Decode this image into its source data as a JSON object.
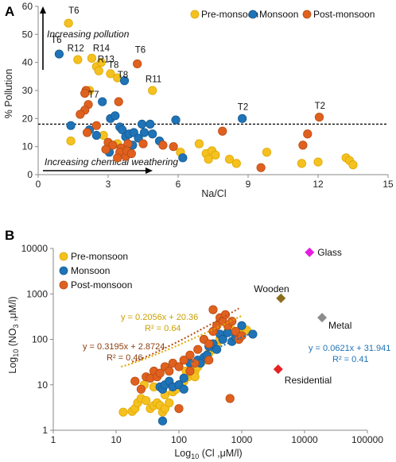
{
  "panels": [
    {
      "letter": "A"
    },
    {
      "letter": "B"
    }
  ],
  "colors": {
    "pre": "#F5C120",
    "mon": "#1F73B7",
    "post": "#E0611F",
    "pre_edge": "#E0A800",
    "mon_edge": "#155B93",
    "post_edge": "#B84B12",
    "glass": "#E51CE0",
    "wooden": "#8C6D1C",
    "metal": "#8C8C8C",
    "residential": "#E52222"
  },
  "chart_data": [
    {
      "type": "scatter",
      "panel": "A",
      "xlabel": "Na/Cl",
      "ylabel": "% Pollution",
      "xlim": [
        0,
        15
      ],
      "ylim": [
        0,
        60
      ],
      "xticks": [
        0,
        3,
        6,
        9,
        12,
        15
      ],
      "yticks": [
        0,
        10,
        20,
        30,
        40,
        50,
        60
      ],
      "legend_position": "top",
      "threshold_y": 18,
      "annotations": [
        "Increasing pollution",
        "Increasing chemical weathering"
      ],
      "series": [
        {
          "name": "Pre-monsoon",
          "color_key": "pre",
          "points": [
            [
              1.3,
              54
            ],
            [
              1.7,
              41
            ],
            [
              2.3,
              41.5
            ],
            [
              2.5,
              38.5
            ],
            [
              2.6,
              37
            ],
            [
              2.7,
              40
            ],
            [
              3.1,
              36
            ],
            [
              3.4,
              34.5
            ],
            [
              4.9,
              30
            ],
            [
              1.4,
              12
            ],
            [
              6.1,
              8
            ],
            [
              6.9,
              11
            ],
            [
              7.2,
              7.5
            ],
            [
              7.3,
              5.5
            ],
            [
              7.45,
              8.5
            ],
            [
              7.6,
              7
            ],
            [
              8.2,
              5.5
            ],
            [
              8.5,
              4
            ],
            [
              9.8,
              8
            ],
            [
              11.3,
              4
            ],
            [
              12.0,
              4.5
            ],
            [
              13.2,
              6
            ],
            [
              13.35,
              5
            ],
            [
              13.5,
              3.5
            ],
            [
              2.8,
              14
            ],
            [
              3.4,
              11
            ],
            [
              2.2,
              30
            ]
          ]
        },
        {
          "name": "Monsoon",
          "color_key": "mon",
          "points": [
            [
              0.9,
              43
            ],
            [
              3.7,
              33.5
            ],
            [
              2.75,
              26
            ],
            [
              1.4,
              17.5
            ],
            [
              2.2,
              16
            ],
            [
              2.5,
              14
            ],
            [
              3.1,
              20
            ],
            [
              3.3,
              21
            ],
            [
              3.5,
              17
            ],
            [
              3.6,
              16
            ],
            [
              3.75,
              13.5
            ],
            [
              3.9,
              14.5
            ],
            [
              4.1,
              15
            ],
            [
              4.3,
              13
            ],
            [
              4.45,
              18
            ],
            [
              4.55,
              15
            ],
            [
              4.8,
              18
            ],
            [
              4.9,
              14.5
            ],
            [
              5.2,
              12
            ],
            [
              5.9,
              19.5
            ],
            [
              6.2,
              6
            ],
            [
              8.75,
              20
            ],
            [
              4.05,
              10.5
            ],
            [
              3.05,
              8
            ]
          ]
        },
        {
          "name": "Post-monsoon",
          "color_key": "post",
          "points": [
            [
              4.25,
              39.5
            ],
            [
              2.05,
              30
            ],
            [
              2.0,
              29
            ],
            [
              2.15,
              25
            ],
            [
              2.0,
              23
            ],
            [
              1.8,
              21.5
            ],
            [
              2.5,
              17.5
            ],
            [
              2.1,
              15
            ],
            [
              3.0,
              11.5
            ],
            [
              3.2,
              10.5
            ],
            [
              3.55,
              9.5
            ],
            [
              3.85,
              11
            ],
            [
              3.45,
              26
            ],
            [
              3.5,
              8
            ],
            [
              3.75,
              6.5
            ],
            [
              3.8,
              8.5
            ],
            [
              4.0,
              7.5
            ],
            [
              3.4,
              6
            ],
            [
              4.5,
              11
            ],
            [
              5.35,
              10.5
            ],
            [
              5.8,
              10
            ],
            [
              7.9,
              15.5
            ],
            [
              9.55,
              2.5
            ],
            [
              11.35,
              10.5
            ],
            [
              12.05,
              20.5
            ],
            [
              11.55,
              14.5
            ],
            [
              2.9,
              9
            ]
          ]
        }
      ],
      "labels": [
        {
          "text": "T6",
          "x": 1.3,
          "y": 57.5
        },
        {
          "text": "T6",
          "x": 0.55,
          "y": 47
        },
        {
          "text": "R12",
          "x": 1.25,
          "y": 44
        },
        {
          "text": "R14",
          "x": 2.35,
          "y": 44
        },
        {
          "text": "R13",
          "x": 2.55,
          "y": 40
        },
        {
          "text": "T8",
          "x": 3.0,
          "y": 38
        },
        {
          "text": "T8",
          "x": 3.4,
          "y": 34.5
        },
        {
          "text": "T6",
          "x": 4.15,
          "y": 43.5
        },
        {
          "text": "R11",
          "x": 4.6,
          "y": 33
        },
        {
          "text": "T7",
          "x": 2.15,
          "y": 27.5
        },
        {
          "text": "T2",
          "x": 8.55,
          "y": 23
        },
        {
          "text": "T2",
          "x": 11.85,
          "y": 23.5
        }
      ]
    },
    {
      "type": "scatter",
      "panel": "B",
      "scale": "log-log",
      "xlabel": "Log10 (Cl ,μM/l)",
      "ylabel": "Log10 (NO3 ,μM/l)",
      "xlim": [
        1,
        100000
      ],
      "ylim": [
        1,
        10000
      ],
      "xticks": [
        1,
        10,
        100,
        1000,
        10000,
        100000
      ],
      "yticks": [
        1,
        10,
        100,
        1000,
        10000
      ],
      "legend_position": "top-left",
      "series": [
        {
          "name": "Pre-monsoon",
          "color_key": "pre",
          "points": [
            [
              13,
              2.5
            ],
            [
              18,
              2.6
            ],
            [
              20,
              3
            ],
            [
              22,
              4
            ],
            [
              25,
              5
            ],
            [
              30,
              4.5
            ],
            [
              35,
              3
            ],
            [
              40,
              3.5
            ],
            [
              45,
              4
            ],
            [
              50,
              3.5
            ],
            [
              55,
              2.5
            ],
            [
              60,
              3
            ],
            [
              70,
              4
            ],
            [
              28,
              10
            ],
            [
              40,
              9
            ],
            [
              60,
              6
            ],
            [
              80,
              7
            ],
            [
              90,
              8
            ],
            [
              100,
              10
            ],
            [
              120,
              12
            ],
            [
              140,
              15
            ],
            [
              160,
              18
            ],
            [
              180,
              20
            ],
            [
              200,
              25
            ],
            [
              220,
              30
            ],
            [
              250,
              40
            ],
            [
              300,
              50
            ],
            [
              350,
              60
            ],
            [
              400,
              80
            ],
            [
              450,
              100
            ],
            [
              500,
              120
            ],
            [
              600,
              150
            ],
            [
              700,
              160
            ],
            [
              800,
              130
            ],
            [
              1000,
              180
            ],
            [
              1200,
              160
            ],
            [
              270,
              35
            ],
            [
              180,
              15
            ],
            [
              130,
              20
            ]
          ]
        },
        {
          "name": "Monsoon",
          "color_key": "mon",
          "points": [
            [
              50,
              9
            ],
            [
              55,
              8
            ],
            [
              60,
              10
            ],
            [
              70,
              12
            ],
            [
              80,
              9
            ],
            [
              100,
              10
            ],
            [
              120,
              14
            ],
            [
              150,
              30
            ],
            [
              200,
              35
            ],
            [
              250,
              40
            ],
            [
              300,
              70
            ],
            [
              350,
              80
            ],
            [
              400,
              60
            ],
            [
              450,
              130
            ],
            [
              500,
              100
            ],
            [
              600,
              140
            ],
            [
              700,
              90
            ],
            [
              800,
              110
            ],
            [
              1000,
              200
            ],
            [
              1500,
              130
            ],
            [
              55,
              1.6
            ],
            [
              120,
              8
            ],
            [
              280,
              45
            ],
            [
              220,
              30
            ]
          ]
        },
        {
          "name": "Post-monsoon",
          "color_key": "post",
          "points": [
            [
              20,
              12
            ],
            [
              25,
              8
            ],
            [
              30,
              15
            ],
            [
              35,
              14
            ],
            [
              40,
              20
            ],
            [
              45,
              15
            ],
            [
              50,
              18
            ],
            [
              60,
              25
            ],
            [
              70,
              20
            ],
            [
              80,
              30
            ],
            [
              100,
              25
            ],
            [
              120,
              35
            ],
            [
              150,
              45
            ],
            [
              180,
              30
            ],
            [
              200,
              60
            ],
            [
              250,
              100
            ],
            [
              300,
              80
            ],
            [
              350,
              150
            ],
            [
              400,
              200
            ],
            [
              450,
              300
            ],
            [
              500,
              250
            ],
            [
              550,
              350
            ],
            [
              600,
              200
            ],
            [
              700,
              250
            ],
            [
              800,
              150
            ],
            [
              900,
              100
            ],
            [
              1000,
              120
            ],
            [
              350,
              450
            ],
            [
              650,
              5
            ],
            [
              100,
              3
            ],
            [
              150,
              20
            ],
            [
              300,
              35
            ]
          ]
        }
      ],
      "sources": [
        {
          "label": "Glass",
          "x": 12000,
          "y": 8200,
          "color_key": "glass"
        },
        {
          "label": "Wooden",
          "x": 4200,
          "y": 800,
          "color_key": "wooden"
        },
        {
          "label": "Metal",
          "x": 19000,
          "y": 300,
          "color_key": "metal"
        },
        {
          "label": "Residential",
          "x": 3800,
          "y": 22,
          "color_key": "residential"
        }
      ],
      "trendlines": [
        {
          "series": "Pre-monsoon",
          "color_key": "pre_edge",
          "equation": "y = 0.2056x + 20.36",
          "r2": "R² = 0.64"
        },
        {
          "series": "Post-monsoon",
          "color_key": "post_edge",
          "equation": "y = 0.3195x + 2.8724",
          "r2": "R² = 0.46"
        },
        {
          "series": "Monsoon",
          "color_key": "mon",
          "equation": "y = 0.0621x + 31.941",
          "r2": "R² = 0.41"
        }
      ]
    }
  ]
}
